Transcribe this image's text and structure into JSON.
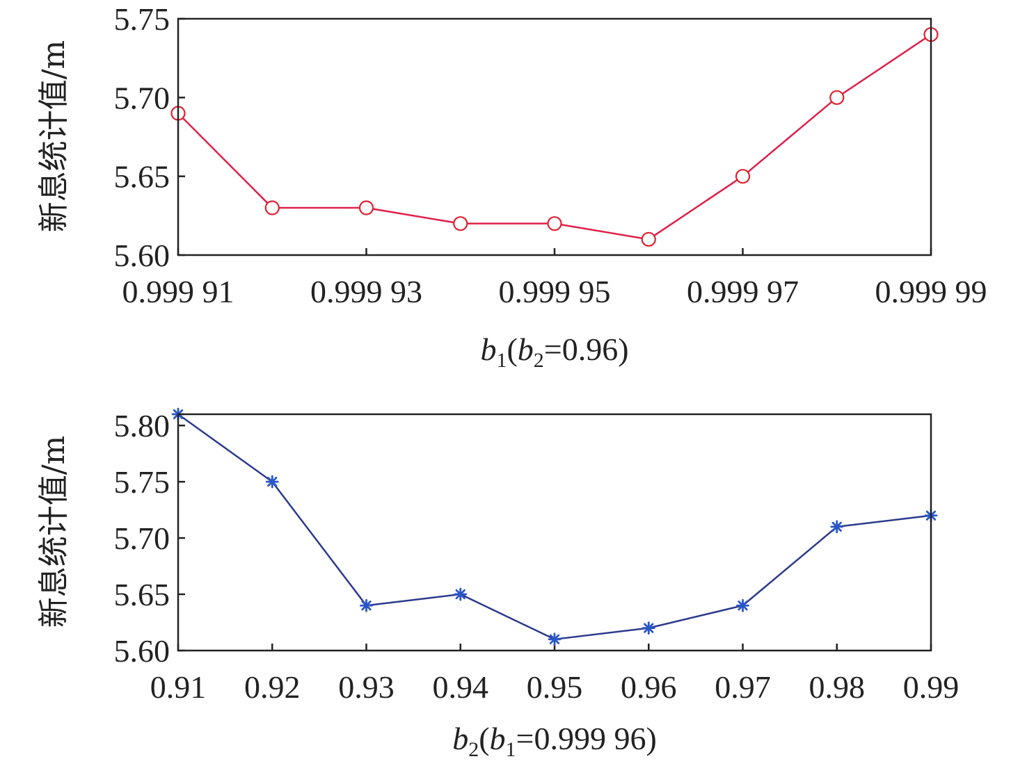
{
  "chart_data": [
    {
      "type": "line",
      "ylabel": "新息统计值/m",
      "xlabel": {
        "var": "b",
        "var_sub": "1",
        "open": "(",
        "cond_var": "b",
        "cond_sub": "2",
        "cond_rest": "=0.96)"
      },
      "x_ticks": [
        "0.999 91",
        "0.999 93",
        "0.999 95",
        "0.999 97",
        "0.999 99"
      ],
      "y_ticks": [
        "5.60",
        "5.65",
        "5.70",
        "5.75"
      ],
      "xlim": [
        0.99991,
        0.99999
      ],
      "ylim": [
        5.6,
        5.75
      ],
      "grid": false,
      "series": [
        {
          "marker": "circle",
          "color": "#e0204a",
          "marker_color": "#e02030",
          "x": [
            0.99991,
            0.99992,
            0.99993,
            0.99994,
            0.99995,
            0.99996,
            0.99997,
            0.99998,
            0.99999
          ],
          "values": [
            5.69,
            5.63,
            5.63,
            5.62,
            5.62,
            5.61,
            5.65,
            5.7,
            5.74
          ]
        }
      ]
    },
    {
      "type": "line",
      "ylabel": "新息统计值/m",
      "xlabel": {
        "var": "b",
        "var_sub": "2",
        "open": "(",
        "cond_var": "b",
        "cond_sub": "1",
        "cond_rest": "=0.999 96)"
      },
      "x_ticks": [
        "0.91",
        "0.92",
        "0.93",
        "0.94",
        "0.95",
        "0.96",
        "0.97",
        "0.98",
        "0.99"
      ],
      "y_ticks": [
        "5.60",
        "5.65",
        "5.70",
        "5.75",
        "5.80"
      ],
      "xlim": [
        0.91,
        0.99
      ],
      "ylim": [
        5.6,
        5.81
      ],
      "grid": false,
      "series": [
        {
          "marker": "asterisk",
          "color": "#2b3a8c",
          "marker_color": "#2a56c8",
          "x": [
            0.91,
            0.92,
            0.93,
            0.94,
            0.95,
            0.96,
            0.97,
            0.98,
            0.99
          ],
          "values": [
            5.81,
            5.75,
            5.64,
            5.65,
            5.61,
            5.62,
            5.64,
            5.71,
            5.72
          ]
        }
      ]
    }
  ]
}
